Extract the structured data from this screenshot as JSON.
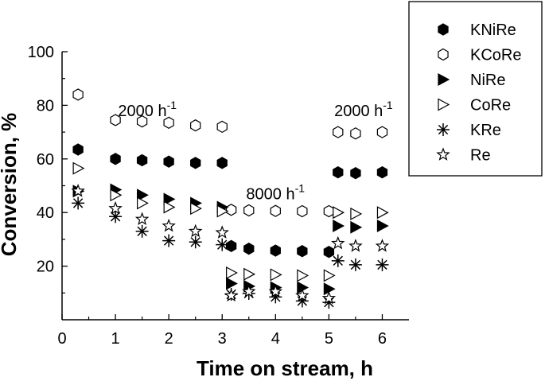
{
  "chart_data": {
    "type": "scatter",
    "xlabel": "Time on stream, h",
    "ylabel": "Conversion, %",
    "xlim": [
      0,
      6.5
    ],
    "ylim": [
      0,
      100
    ],
    "xticks": [
      0,
      1,
      2,
      3,
      4,
      5,
      6
    ],
    "yticks": [
      20,
      40,
      60,
      80,
      100
    ],
    "grid": false,
    "legend_position": "top-right outside",
    "annotations": [
      {
        "text": "2000 h",
        "sup": "-1",
        "x": 1.05,
        "y": 76
      },
      {
        "text": "8000 h",
        "sup": "-1",
        "x": 3.45,
        "y": 45
      },
      {
        "text": "2000 h",
        "sup": "-1",
        "x": 5.1,
        "y": 76
      }
    ],
    "series": [
      {
        "name": "KNiRe",
        "marker": "hexagon-filled",
        "x": [
          0.3,
          1,
          1.5,
          2,
          2.5,
          3,
          3.17,
          3.5,
          4,
          4.5,
          5,
          5.17,
          5.5,
          6
        ],
        "y": [
          63.5,
          60,
          59.5,
          59,
          58.5,
          58.5,
          27.5,
          26.5,
          25.8,
          25.6,
          25.3,
          55,
          54.7,
          55
        ]
      },
      {
        "name": "KCoRe",
        "marker": "hexagon-open",
        "x": [
          0.3,
          1,
          1.5,
          2,
          2.5,
          3,
          3.17,
          3.5,
          4,
          4.5,
          5,
          5.17,
          5.5,
          6
        ],
        "y": [
          84,
          74.5,
          74,
          73.5,
          72.5,
          72,
          41,
          40.8,
          40.6,
          40.5,
          40.5,
          70,
          69.5,
          70
        ]
      },
      {
        "name": "NiRe",
        "marker": "triangle-right-filled",
        "x": [
          0.3,
          1,
          1.5,
          2,
          2.5,
          3,
          3.17,
          3.5,
          4,
          4.5,
          5,
          5.17,
          5.5,
          6
        ],
        "y": [
          48,
          48.5,
          46.5,
          45,
          43.5,
          42,
          13.5,
          12.5,
          12,
          12,
          11.5,
          35,
          34.5,
          35
        ]
      },
      {
        "name": "CoRe",
        "marker": "triangle-right-open",
        "x": [
          0.3,
          1,
          1.5,
          2,
          2.5,
          3,
          3.17,
          3.5,
          4,
          4.5,
          5,
          5.17,
          5.5,
          6
        ],
        "y": [
          56.5,
          46.5,
          43.5,
          42,
          41.5,
          40.5,
          17.5,
          17,
          16.8,
          16.5,
          16.5,
          40,
          39.5,
          40
        ]
      },
      {
        "name": "KRe",
        "marker": "asterisk",
        "x": [
          0.3,
          1,
          1.5,
          2,
          2.5,
          3,
          3.17,
          3.5,
          4,
          4.5,
          5,
          5.17,
          5.5,
          6
        ],
        "y": [
          43.5,
          38.5,
          33,
          29.5,
          29,
          28,
          9.5,
          9.8,
          8.5,
          7,
          6.5,
          22,
          20.5,
          20.5
        ]
      },
      {
        "name": "Re",
        "marker": "star-open",
        "x": [
          0.3,
          1,
          1.5,
          2,
          2.5,
          3,
          3.17,
          3.5,
          4,
          4.5,
          5,
          5.17,
          5.5,
          6
        ],
        "y": [
          48,
          41.5,
          37.5,
          35,
          33,
          32.5,
          9,
          10.5,
          10.5,
          9,
          8,
          28.5,
          27.5,
          27.5
        ]
      }
    ]
  }
}
